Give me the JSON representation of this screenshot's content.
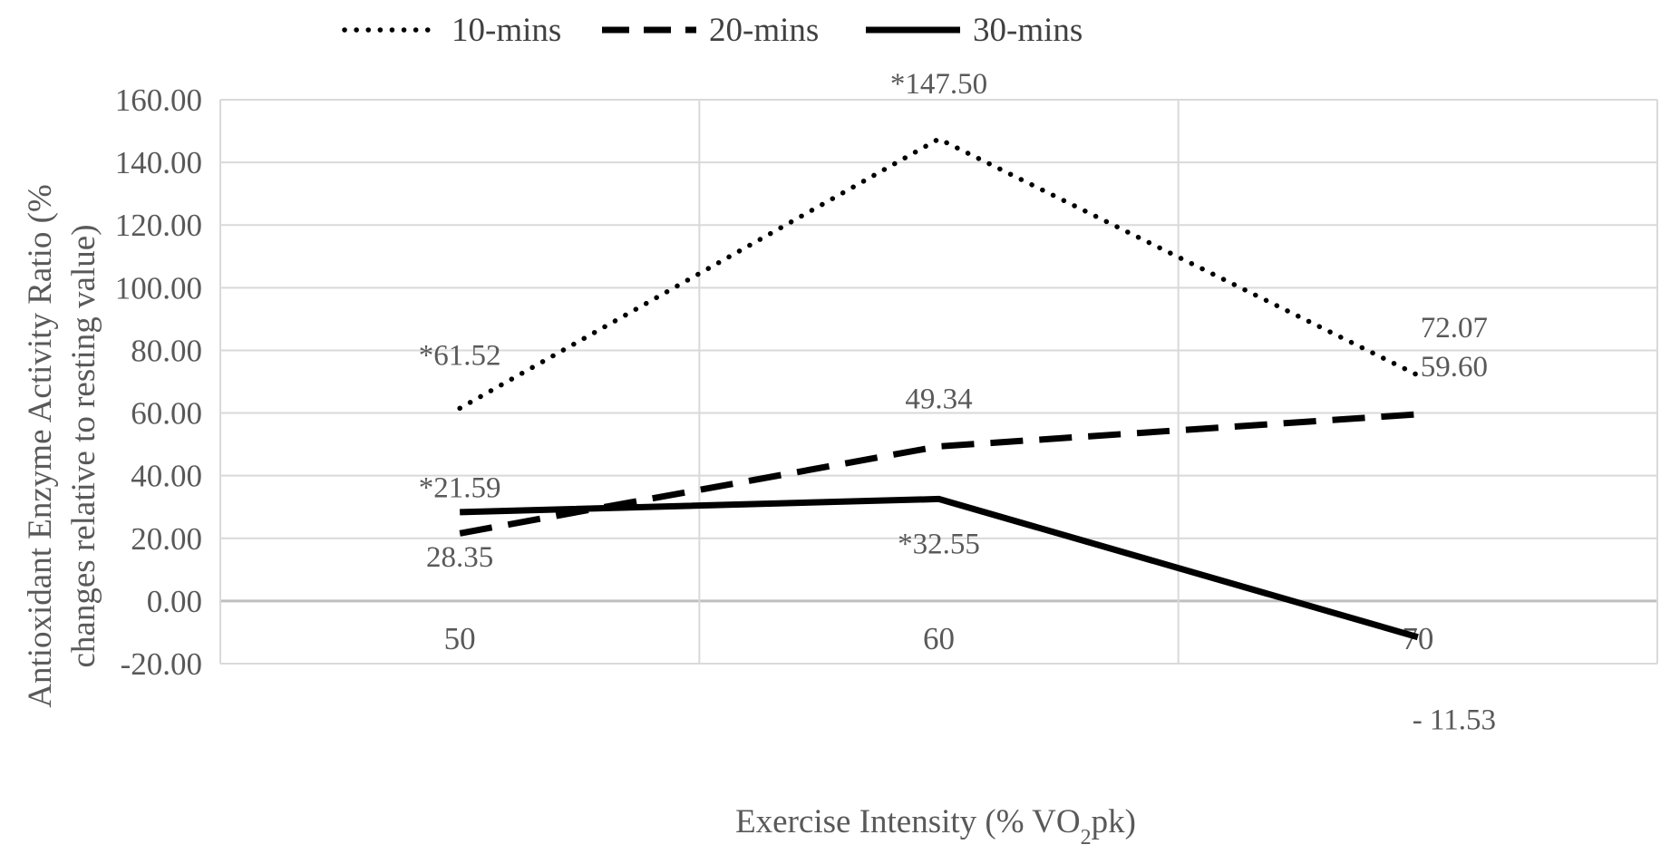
{
  "chart_data": {
    "type": "line",
    "title": "",
    "xlabel_main": "Exercise Intensity (% VO",
    "xlabel_sub": "2",
    "xlabel_tail": "pk)",
    "ylabel_line1": "Antioxidant Enzyme Activity Ratio (%",
    "ylabel_line2": "changes relative to resting value)",
    "categories": [
      "50",
      "60",
      "70"
    ],
    "ylim": [
      -20,
      160
    ],
    "yticks": [
      "-20.00",
      "0.00",
      "20.00",
      "40.00",
      "60.00",
      "80.00",
      "100.00",
      "120.00",
      "140.00",
      "160.00"
    ],
    "ytick_values": [
      -20,
      0,
      20,
      40,
      60,
      80,
      100,
      120,
      140,
      160
    ],
    "grid": true,
    "legend_position": "top-center",
    "series": [
      {
        "name": "10-mins",
        "style": "dotted",
        "values": [
          61.52,
          147.5,
          72.07
        ],
        "labels": [
          "*61.52",
          "*147.50",
          "72.07"
        ]
      },
      {
        "name": "20-mins",
        "style": "dashed",
        "values": [
          21.59,
          49.34,
          59.6
        ],
        "labels": [
          "*21.59",
          "49.34",
          "59.60"
        ]
      },
      {
        "name": "30-mins",
        "style": "solid",
        "values": [
          28.35,
          32.55,
          -11.53
        ],
        "labels": [
          "28.35",
          "*32.55",
          "- 11.53"
        ]
      }
    ],
    "colors": {
      "line": "#000000",
      "grid": "#d9d9d9",
      "zero_line": "#bfbfbf",
      "text": "#595959"
    }
  }
}
